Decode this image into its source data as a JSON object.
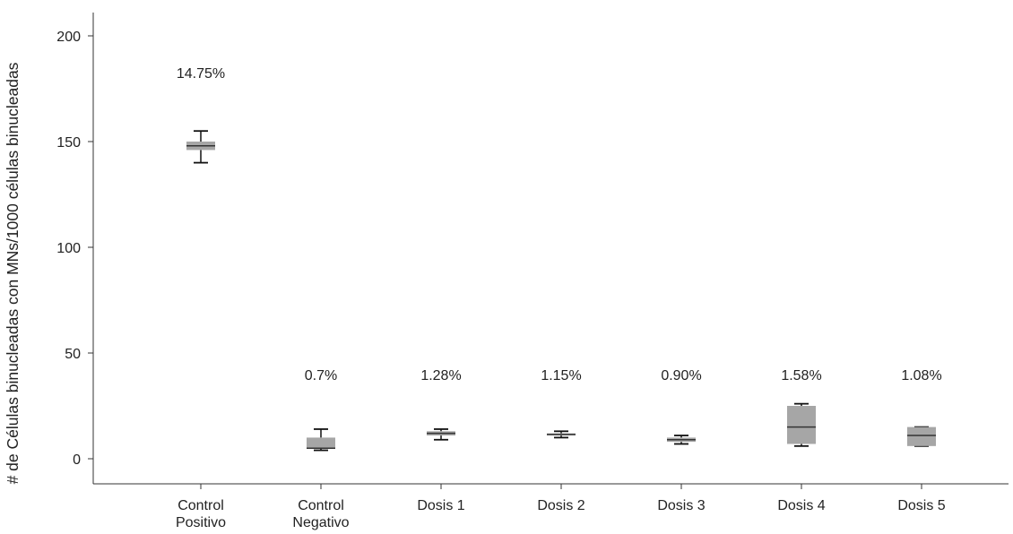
{
  "chart_data": {
    "type": "box",
    "title": "",
    "xlabel": "",
    "ylabel": "# de Células binucleadas con MNs/1000 células binucleadas",
    "ylim": [
      -10,
      212
    ],
    "yticks": [
      0,
      50,
      100,
      150,
      200
    ],
    "grid": false,
    "legend": "none",
    "box_color": "#a6a6a6",
    "categories": [
      [
        "Control",
        "Positivo"
      ],
      [
        "Control",
        "Negativo"
      ],
      [
        "Dosis 1"
      ],
      [
        "Dosis 2"
      ],
      [
        "Dosis 3"
      ],
      [
        "Dosis 4"
      ],
      [
        "Dosis 5"
      ]
    ],
    "annotations": [
      "14.75%",
      "0.7%",
      "1.28%",
      "1.15%",
      "0.90%",
      "1.58%",
      "1.08%"
    ],
    "boxes": [
      {
        "min": 140,
        "q1": 146,
        "median": 148,
        "q3": 150,
        "max": 155
      },
      {
        "min": 4,
        "q1": 5,
        "median": 5,
        "q3": 10,
        "max": 14
      },
      {
        "min": 9,
        "q1": 11,
        "median": 12,
        "q3": 13,
        "max": 14
      },
      {
        "min": 10,
        "q1": 11,
        "median": 11.5,
        "q3": 12,
        "max": 13
      },
      {
        "min": 7,
        "q1": 8,
        "median": 9,
        "q3": 10,
        "max": 11
      },
      {
        "min": 6,
        "q1": 7,
        "median": 15,
        "q3": 25,
        "max": 26
      },
      {
        "min": 6,
        "q1": 6,
        "median": 11,
        "q3": 15,
        "max": 15
      }
    ]
  }
}
